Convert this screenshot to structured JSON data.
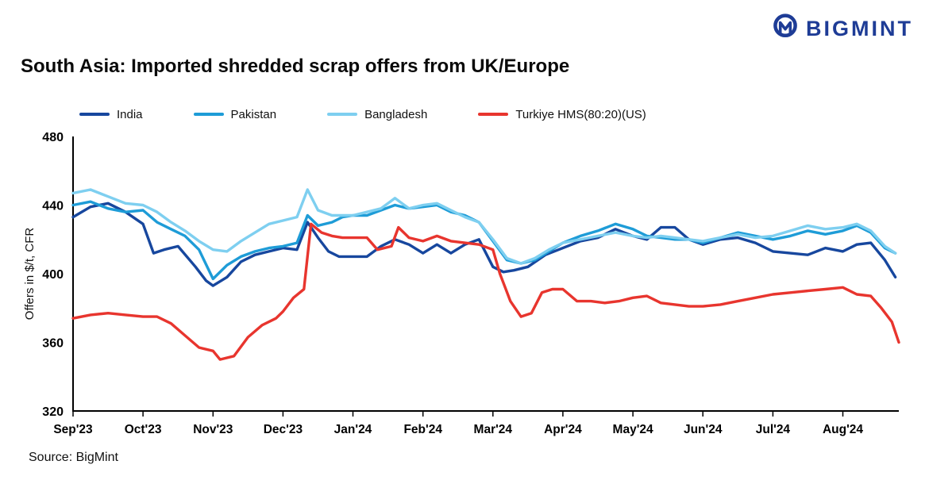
{
  "logo": {
    "text": "BIGMINT",
    "color": "#1E3C96"
  },
  "title": "South Asia: Imported shredded scrap offers from UK/Europe",
  "source": "Source: BigMint",
  "chart_data": {
    "type": "line",
    "title": "South Asia: Imported shredded scrap offers from UK/Europe",
    "xlabel": "",
    "ylabel": "Offers in $/t, CFR",
    "ylim": [
      320,
      480
    ],
    "yticks": [
      320,
      360,
      400,
      440,
      480
    ],
    "xlim": [
      0,
      11.8
    ],
    "grid": false,
    "legend_position": "top",
    "x_tick_positions": [
      0,
      1,
      2,
      3,
      4,
      5,
      6,
      7,
      8,
      9,
      10,
      11
    ],
    "x_tick_labels": [
      "Sep'23",
      "Oct'23",
      "Nov'23",
      "Dec'23",
      "Jan'24",
      "Feb'24",
      "Mar'24",
      "Apr'24",
      "May'24",
      "Jun'24",
      "Jul'24",
      "Aug'24"
    ],
    "series": [
      {
        "name": "India",
        "color": "#17479E",
        "points": [
          [
            0,
            433
          ],
          [
            0.25,
            439
          ],
          [
            0.5,
            441
          ],
          [
            0.75,
            436
          ],
          [
            1,
            429
          ],
          [
            1.15,
            412
          ],
          [
            1.3,
            414
          ],
          [
            1.5,
            416
          ],
          [
            1.75,
            404
          ],
          [
            1.9,
            396
          ],
          [
            2,
            393
          ],
          [
            2.2,
            398
          ],
          [
            2.4,
            407
          ],
          [
            2.6,
            411
          ],
          [
            2.8,
            413
          ],
          [
            3,
            415
          ],
          [
            3.2,
            414
          ],
          [
            3.35,
            430
          ],
          [
            3.5,
            421
          ],
          [
            3.65,
            413
          ],
          [
            3.8,
            410
          ],
          [
            4,
            410
          ],
          [
            4.2,
            410
          ],
          [
            4.4,
            416
          ],
          [
            4.6,
            420
          ],
          [
            4.8,
            417
          ],
          [
            5,
            412
          ],
          [
            5.2,
            417
          ],
          [
            5.4,
            412
          ],
          [
            5.6,
            417
          ],
          [
            5.8,
            420
          ],
          [
            6,
            404
          ],
          [
            6.15,
            401
          ],
          [
            6.3,
            402
          ],
          [
            6.5,
            404
          ],
          [
            6.75,
            411
          ],
          [
            7,
            415
          ],
          [
            7.25,
            419
          ],
          [
            7.5,
            421
          ],
          [
            7.75,
            426
          ],
          [
            8,
            422
          ],
          [
            8.2,
            420
          ],
          [
            8.4,
            427
          ],
          [
            8.6,
            427
          ],
          [
            8.8,
            420
          ],
          [
            9,
            417
          ],
          [
            9.25,
            420
          ],
          [
            9.5,
            421
          ],
          [
            9.75,
            418
          ],
          [
            10,
            413
          ],
          [
            10.25,
            412
          ],
          [
            10.5,
            411
          ],
          [
            10.75,
            415
          ],
          [
            11,
            413
          ],
          [
            11.2,
            417
          ],
          [
            11.4,
            418
          ],
          [
            11.6,
            408
          ],
          [
            11.75,
            398
          ]
        ]
      },
      {
        "name": "Pakistan",
        "color": "#1E9CD7",
        "points": [
          [
            0,
            440
          ],
          [
            0.25,
            442
          ],
          [
            0.5,
            438
          ],
          [
            0.75,
            436
          ],
          [
            1,
            437
          ],
          [
            1.2,
            430
          ],
          [
            1.4,
            426
          ],
          [
            1.6,
            422
          ],
          [
            1.8,
            414
          ],
          [
            2,
            397
          ],
          [
            2.2,
            405
          ],
          [
            2.4,
            410
          ],
          [
            2.6,
            413
          ],
          [
            2.8,
            415
          ],
          [
            3,
            416
          ],
          [
            3.2,
            418
          ],
          [
            3.35,
            434
          ],
          [
            3.5,
            428
          ],
          [
            3.7,
            430
          ],
          [
            3.85,
            433
          ],
          [
            4,
            434
          ],
          [
            4.2,
            434
          ],
          [
            4.4,
            437
          ],
          [
            4.6,
            440
          ],
          [
            4.8,
            438
          ],
          [
            5,
            439
          ],
          [
            5.2,
            440
          ],
          [
            5.4,
            436
          ],
          [
            5.6,
            434
          ],
          [
            5.8,
            430
          ],
          [
            6,
            419
          ],
          [
            6.2,
            408
          ],
          [
            6.4,
            406
          ],
          [
            6.6,
            408
          ],
          [
            6.8,
            413
          ],
          [
            7,
            418
          ],
          [
            7.25,
            422
          ],
          [
            7.5,
            425
          ],
          [
            7.75,
            429
          ],
          [
            8,
            426
          ],
          [
            8.2,
            422
          ],
          [
            8.4,
            421
          ],
          [
            8.6,
            420
          ],
          [
            8.8,
            420
          ],
          [
            9,
            418
          ],
          [
            9.25,
            421
          ],
          [
            9.5,
            424
          ],
          [
            9.75,
            422
          ],
          [
            10,
            420
          ],
          [
            10.25,
            422
          ],
          [
            10.5,
            425
          ],
          [
            10.75,
            423
          ],
          [
            11,
            425
          ],
          [
            11.2,
            428
          ],
          [
            11.4,
            424
          ],
          [
            11.6,
            415
          ],
          [
            11.75,
            412
          ]
        ]
      },
      {
        "name": "Bangladesh",
        "color": "#7ECFF0",
        "points": [
          [
            0,
            447
          ],
          [
            0.25,
            449
          ],
          [
            0.5,
            445
          ],
          [
            0.75,
            441
          ],
          [
            1,
            440
          ],
          [
            1.2,
            436
          ],
          [
            1.4,
            430
          ],
          [
            1.6,
            425
          ],
          [
            1.8,
            419
          ],
          [
            2,
            414
          ],
          [
            2.2,
            413
          ],
          [
            2.4,
            419
          ],
          [
            2.6,
            424
          ],
          [
            2.8,
            429
          ],
          [
            3,
            431
          ],
          [
            3.2,
            433
          ],
          [
            3.35,
            449
          ],
          [
            3.5,
            437
          ],
          [
            3.7,
            434
          ],
          [
            3.85,
            434
          ],
          [
            4,
            434
          ],
          [
            4.2,
            436
          ],
          [
            4.4,
            438
          ],
          [
            4.6,
            444
          ],
          [
            4.8,
            438
          ],
          [
            5,
            440
          ],
          [
            5.2,
            441
          ],
          [
            5.4,
            437
          ],
          [
            5.6,
            433
          ],
          [
            5.8,
            430
          ],
          [
            6,
            420
          ],
          [
            6.2,
            409
          ],
          [
            6.4,
            406
          ],
          [
            6.6,
            409
          ],
          [
            6.8,
            414
          ],
          [
            7,
            418
          ],
          [
            7.25,
            420
          ],
          [
            7.5,
            422
          ],
          [
            7.75,
            424
          ],
          [
            8,
            422
          ],
          [
            8.2,
            421
          ],
          [
            8.4,
            422
          ],
          [
            8.6,
            421
          ],
          [
            8.8,
            420
          ],
          [
            9,
            419
          ],
          [
            9.25,
            421
          ],
          [
            9.5,
            423
          ],
          [
            9.75,
            421
          ],
          [
            10,
            422
          ],
          [
            10.25,
            425
          ],
          [
            10.5,
            428
          ],
          [
            10.75,
            426
          ],
          [
            11,
            427
          ],
          [
            11.2,
            429
          ],
          [
            11.4,
            425
          ],
          [
            11.6,
            416
          ],
          [
            11.75,
            412
          ]
        ]
      },
      {
        "name": "Turkiye HMS(80:20)(US)",
        "color": "#E8352E",
        "points": [
          [
            0,
            374
          ],
          [
            0.25,
            376
          ],
          [
            0.5,
            377
          ],
          [
            0.75,
            376
          ],
          [
            1,
            375
          ],
          [
            1.2,
            375
          ],
          [
            1.4,
            371
          ],
          [
            1.6,
            364
          ],
          [
            1.8,
            357
          ],
          [
            2,
            355
          ],
          [
            2.1,
            350
          ],
          [
            2.3,
            352
          ],
          [
            2.5,
            363
          ],
          [
            2.7,
            370
          ],
          [
            2.9,
            374
          ],
          [
            3,
            378
          ],
          [
            3.15,
            386
          ],
          [
            3.3,
            391
          ],
          [
            3.4,
            429
          ],
          [
            3.55,
            424
          ],
          [
            3.7,
            422
          ],
          [
            3.85,
            421
          ],
          [
            4,
            421
          ],
          [
            4.2,
            421
          ],
          [
            4.35,
            414
          ],
          [
            4.55,
            416
          ],
          [
            4.65,
            427
          ],
          [
            4.8,
            421
          ],
          [
            5,
            419
          ],
          [
            5.2,
            422
          ],
          [
            5.4,
            419
          ],
          [
            5.6,
            418
          ],
          [
            5.8,
            417
          ],
          [
            6,
            414
          ],
          [
            6.1,
            400
          ],
          [
            6.25,
            384
          ],
          [
            6.4,
            375
          ],
          [
            6.55,
            377
          ],
          [
            6.7,
            389
          ],
          [
            6.85,
            391
          ],
          [
            7,
            391
          ],
          [
            7.2,
            384
          ],
          [
            7.4,
            384
          ],
          [
            7.6,
            383
          ],
          [
            7.8,
            384
          ],
          [
            8,
            386
          ],
          [
            8.2,
            387
          ],
          [
            8.4,
            383
          ],
          [
            8.6,
            382
          ],
          [
            8.8,
            381
          ],
          [
            9,
            381
          ],
          [
            9.25,
            382
          ],
          [
            9.5,
            384
          ],
          [
            9.75,
            386
          ],
          [
            10,
            388
          ],
          [
            10.25,
            389
          ],
          [
            10.5,
            390
          ],
          [
            10.75,
            391
          ],
          [
            11,
            392
          ],
          [
            11.2,
            388
          ],
          [
            11.4,
            387
          ],
          [
            11.55,
            380
          ],
          [
            11.7,
            372
          ],
          [
            11.8,
            360
          ]
        ]
      }
    ]
  }
}
